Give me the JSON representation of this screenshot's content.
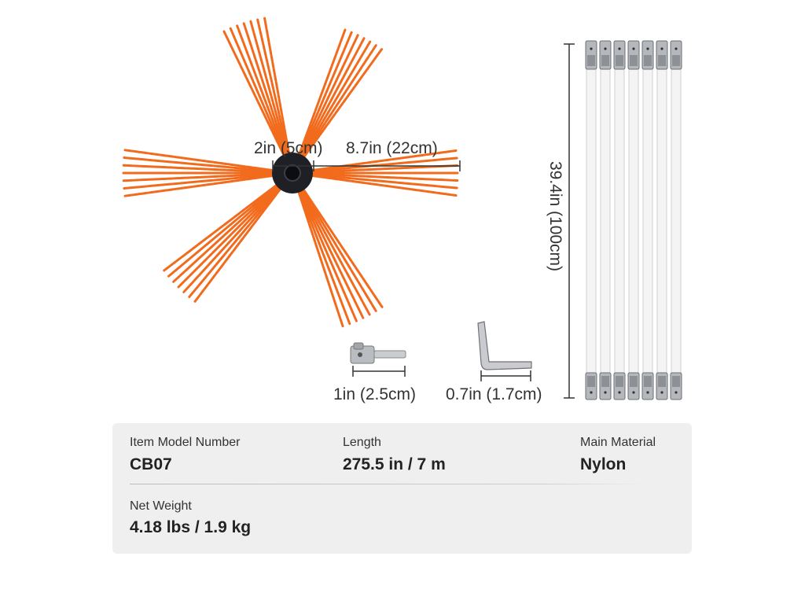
{
  "dimensions": {
    "brush_head": "2in (5cm)",
    "bristle": "8.7in (22cm)",
    "rod": "39.4in (100cm)",
    "adapter": "1in (2.5cm)",
    "wrench": "0.7in (1.7cm)"
  },
  "specs": {
    "model": {
      "label": "Item Model Number",
      "value": "CB07"
    },
    "length": {
      "label": "Length",
      "value": "275.5 in / 7 m"
    },
    "material": {
      "label": "Main Material",
      "value": "Nylon"
    },
    "weight": {
      "label": "Net Weight",
      "value": "4.18 lbs / 1.9 kg"
    }
  },
  "rod_count": 7,
  "colors": {
    "bristle": "#f26b1d",
    "hub": "#1e2026",
    "rod": "#f4f4f4",
    "panel": "#efefef"
  }
}
